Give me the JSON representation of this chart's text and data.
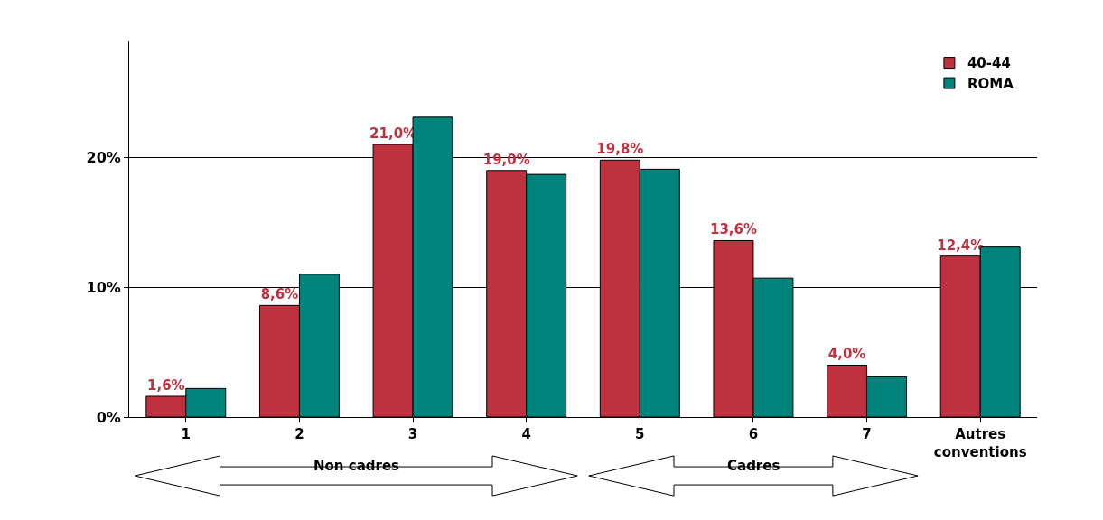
{
  "chart_data": {
    "type": "bar",
    "categories": [
      "1",
      "2",
      "3",
      "4",
      "5",
      "6",
      "7",
      "Autres conventions"
    ],
    "series": [
      {
        "name": "40-44",
        "color": "#c0313f",
        "values": [
          1.6,
          8.6,
          21.0,
          19.0,
          19.8,
          13.6,
          4.0,
          12.4
        ],
        "value_labels": [
          "1,6%",
          "8,6%",
          "21,0%",
          "19,0%",
          "19,8%",
          "13,6%",
          "4,0%",
          "12,4%"
        ]
      },
      {
        "name": "ROMA",
        "color": "#00837a",
        "values": [
          2.2,
          11.0,
          23.1,
          18.7,
          19.1,
          10.7,
          3.1,
          13.1
        ]
      }
    ],
    "ylim": [
      0,
      29
    ],
    "yticks": [
      {
        "value": 0,
        "label": "0%"
      },
      {
        "value": 10,
        "label": "10%"
      },
      {
        "value": 20,
        "label": "20%"
      }
    ],
    "grid": "y",
    "legend": "top right",
    "annotations": [
      "Non cadres",
      "Cadres"
    ]
  }
}
